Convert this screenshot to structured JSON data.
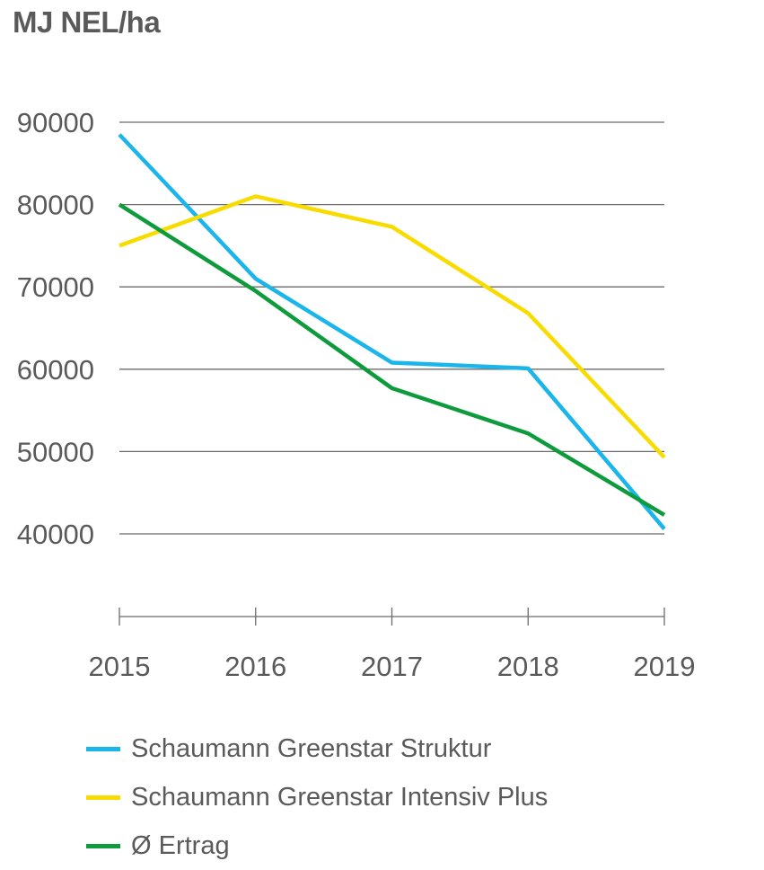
{
  "chart_data": {
    "type": "line",
    "ylabel": "MJ NEL/ha",
    "x": [
      "2015",
      "2016",
      "2017",
      "2018",
      "2019"
    ],
    "yticks": [
      40000,
      50000,
      60000,
      70000,
      80000,
      90000
    ],
    "ylim": [
      30000,
      90000
    ],
    "grid": true,
    "legend_position": "bottom",
    "series": [
      {
        "name": "Schaumann Greenstar Struktur",
        "color": "#1ab5ea",
        "values": [
          88500,
          71000,
          60800,
          60100,
          40600
        ]
      },
      {
        "name": "Schaumann Greenstar Intensiv Plus",
        "color": "#f8dc00",
        "values": [
          75000,
          81000,
          77300,
          66800,
          49300
        ]
      },
      {
        "name": "Ø Ertrag",
        "color": "#0d9b3c",
        "values": [
          80000,
          69500,
          57700,
          52200,
          42300
        ]
      }
    ]
  }
}
